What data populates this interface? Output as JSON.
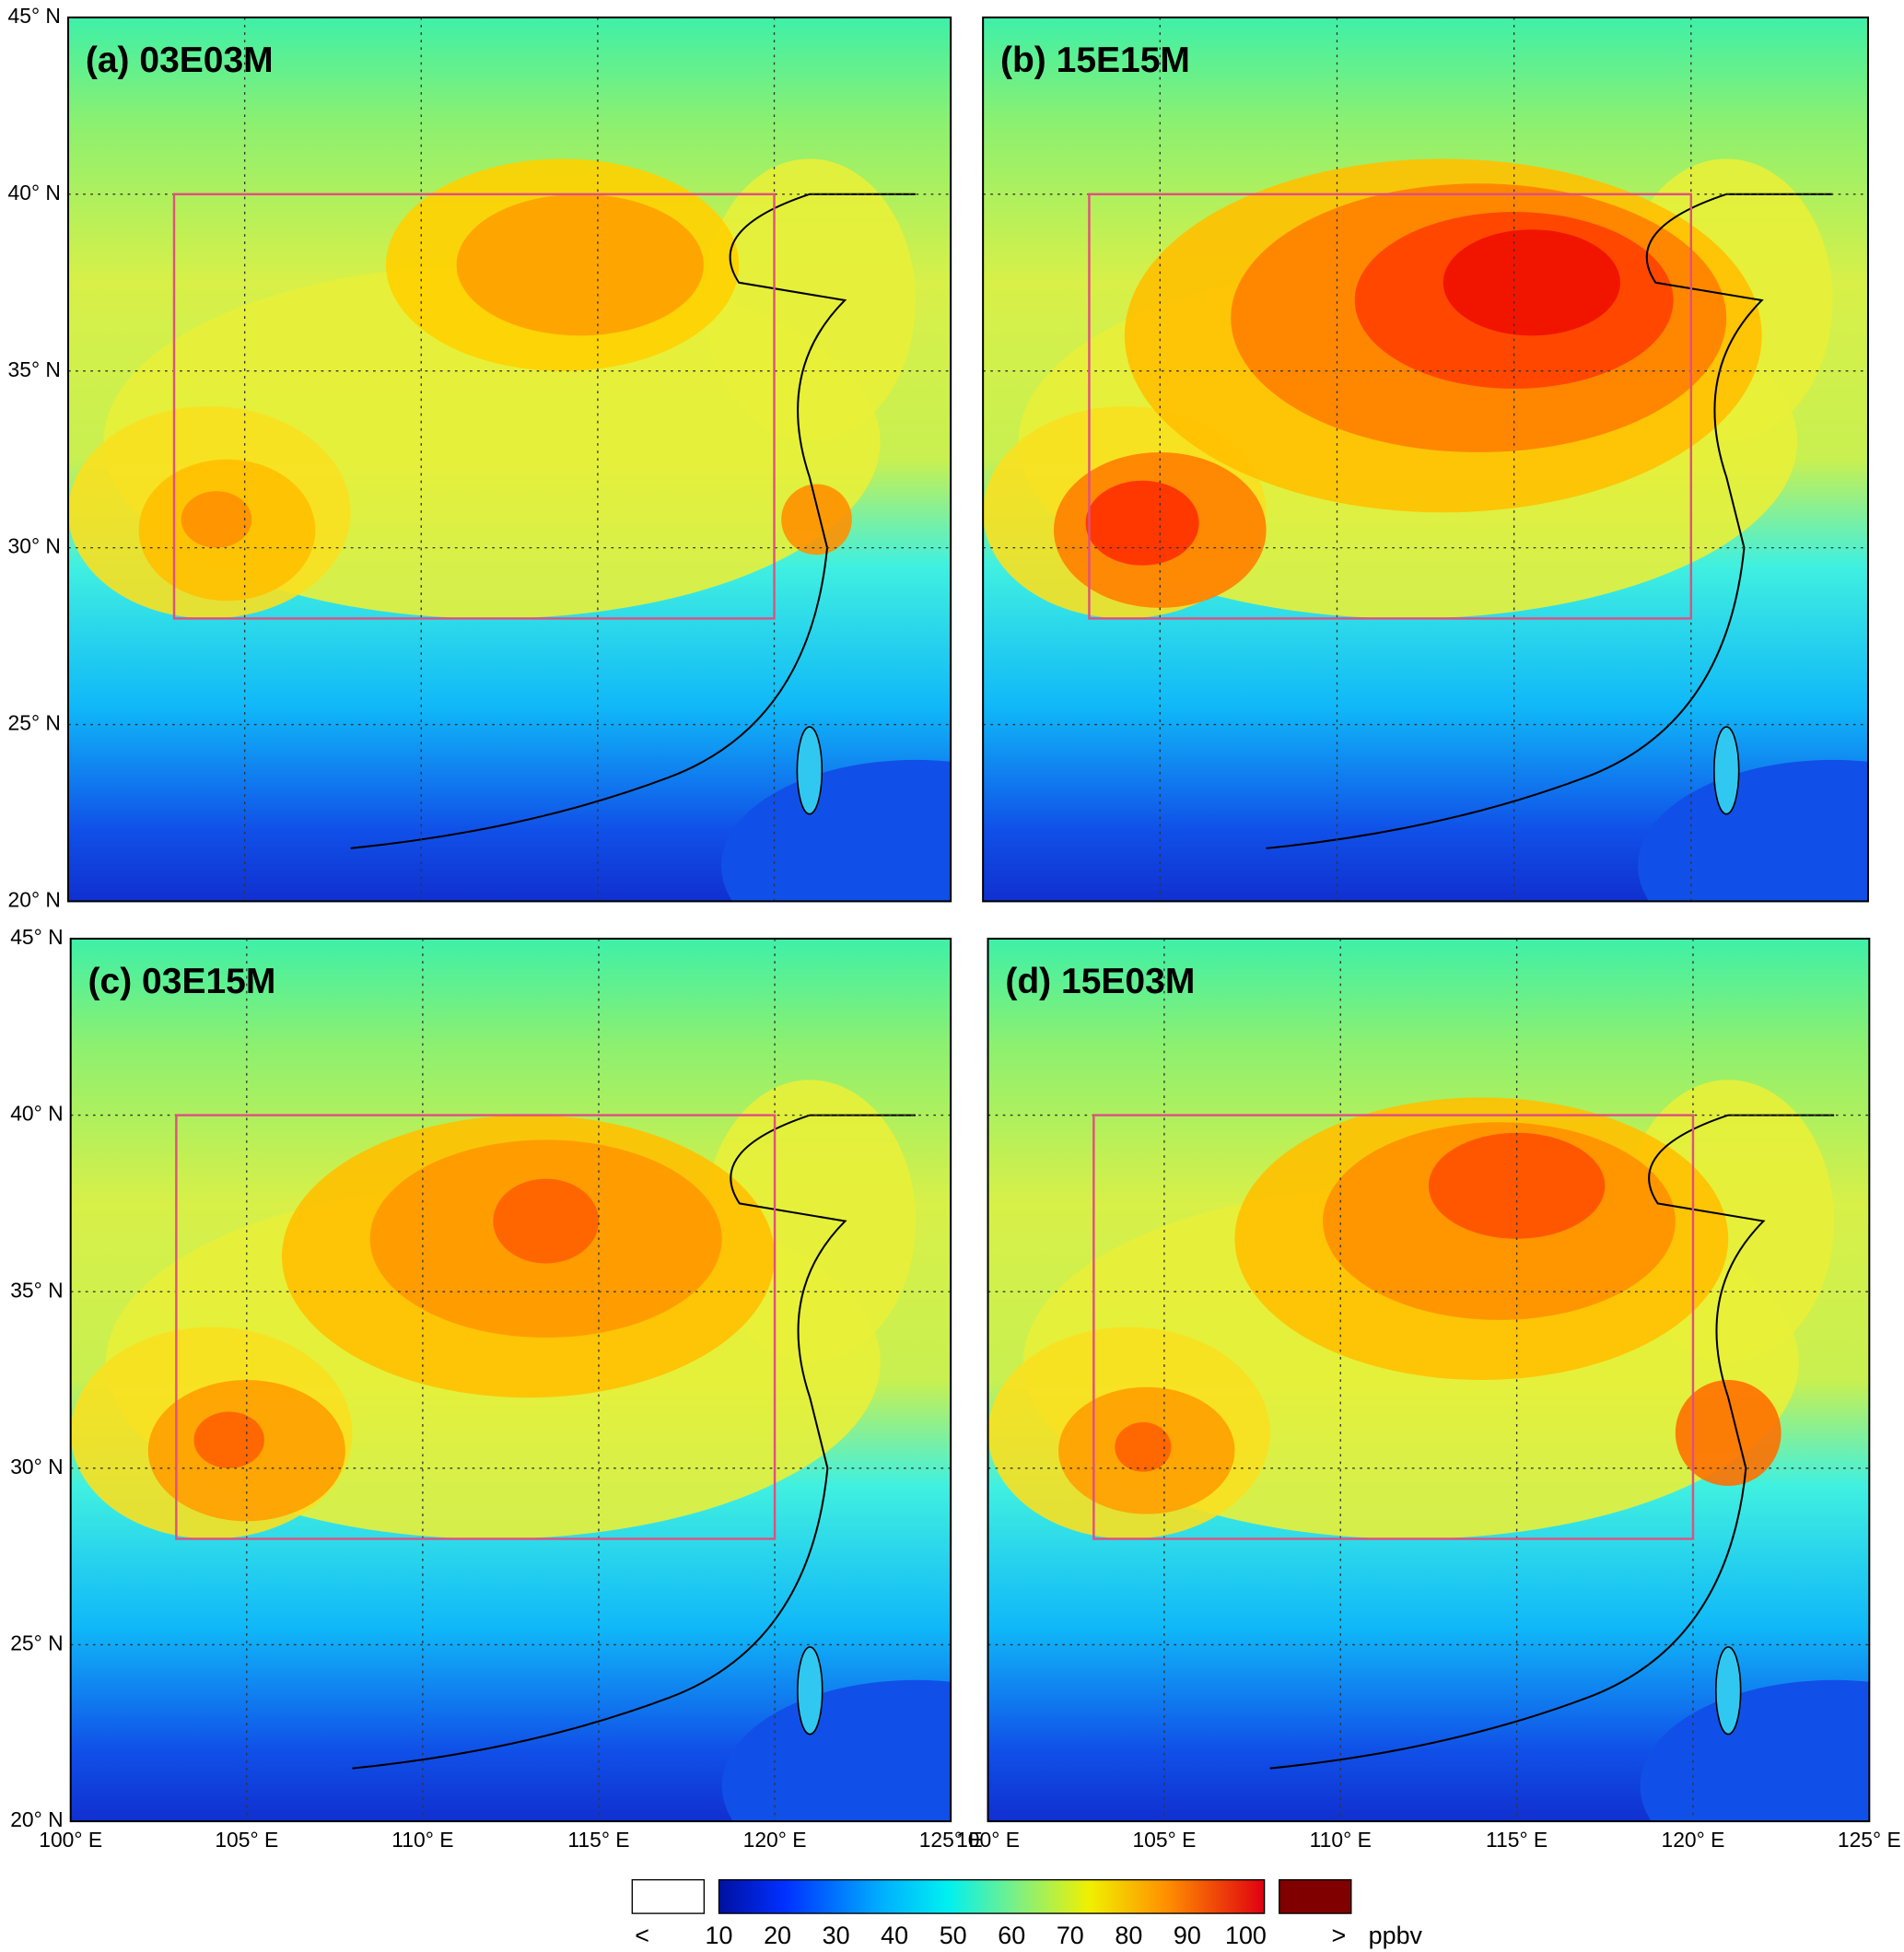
{
  "panels": [
    {
      "title": "(a) 03E03M"
    },
    {
      "title": "(b) 15E15M"
    },
    {
      "title": "(c) 03E15M"
    },
    {
      "title": "(d) 15E03M"
    }
  ],
  "latitude_labels": [
    "45° N",
    "40° N",
    "35° N",
    "30° N",
    "25° N",
    "20° N"
  ],
  "longitude_labels": [
    "100° E",
    "105° E",
    "110° E",
    "115° E",
    "120° E",
    "125° E"
  ],
  "colorbar": {
    "below": "<",
    "ticks": [
      10,
      20,
      30,
      40,
      50,
      60,
      70,
      80,
      90,
      100
    ],
    "above": ">",
    "unit": "ppbv"
  }
}
